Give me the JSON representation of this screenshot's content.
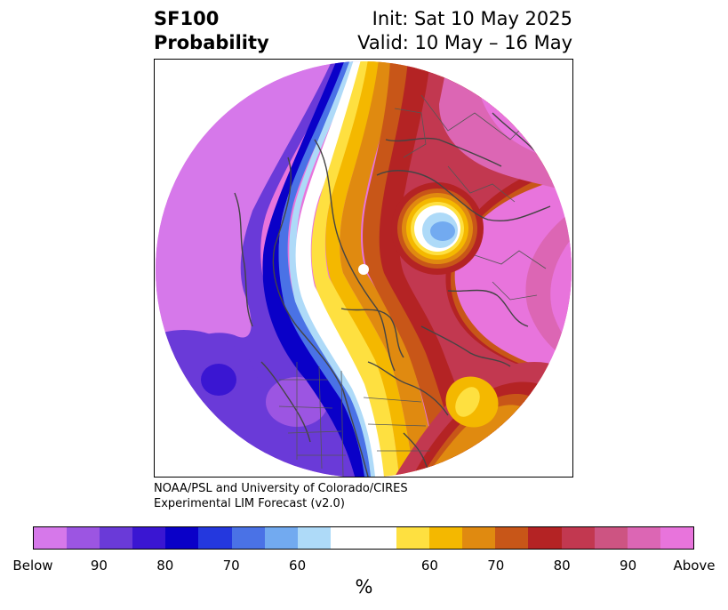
{
  "title": {
    "left_line1": "SF100",
    "left_line2": "Probability",
    "right_line1": "Init: Sat 10 May 2025",
    "right_line2": "Valid: 10 May – 16 May"
  },
  "credit": {
    "line1": "NOAA/PSL and University of Colorado/CIRES",
    "line2": "Experimental LIM Forecast (v2.0)"
  },
  "colorbar": {
    "colors": [
      "#d678ea",
      "#9c55e2",
      "#6a3ad8",
      "#3a16d2",
      "#0a00c8",
      "#2438de",
      "#4a72e6",
      "#72aaf0",
      "#aedaf8",
      "#ffffff",
      "#ffffff",
      "#fee040",
      "#f4b800",
      "#e08a10",
      "#c85618",
      "#b42324",
      "#c23850",
      "#cd5482",
      "#dc66b4",
      "#e874dc"
    ],
    "ticks": [
      "Below",
      "90",
      "80",
      "70",
      "60",
      "60",
      "70",
      "80",
      "90",
      "Above"
    ],
    "label": "%"
  },
  "map": {
    "region": "Northern Hemisphere polar stereographic",
    "fill_colors": {
      "above_far": "#e874dc",
      "above_90": "#dc66b4",
      "above_80": "#c23850",
      "above_70": "#b42324",
      "above_60": "#e08a10",
      "neutral": "#ffffff",
      "below_60": "#aedaf8",
      "below_70": "#4a72e6",
      "below_80": "#0a00c8",
      "below_90": "#6a3ad8",
      "below_far": "#d678ea"
    }
  }
}
